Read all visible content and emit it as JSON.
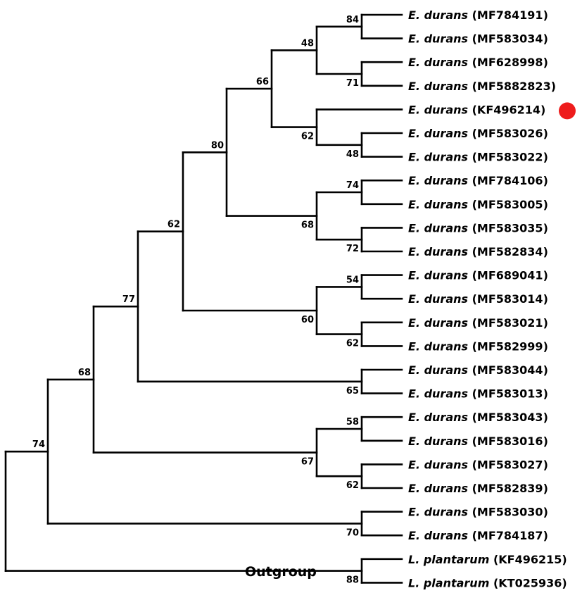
{
  "taxa": [
    {
      "species": "E. durans",
      "accession": "(MF784191)"
    },
    {
      "species": "E. durans",
      "accession": "(MF583034)"
    },
    {
      "species": "E. durans",
      "accession": "(MF628998)"
    },
    {
      "species": "E. durans",
      "accession": "(MF5882823)"
    },
    {
      "species": "E. durans",
      "accession": "(KF496214)",
      "highlight": true
    },
    {
      "species": "E. durans",
      "accession": "(MF583026)"
    },
    {
      "species": "E. durans",
      "accession": "(MF583022)"
    },
    {
      "species": "E. durans",
      "accession": "(MF784106)"
    },
    {
      "species": "E. durans",
      "accession": "(MF583005)"
    },
    {
      "species": "E. durans",
      "accession": "(MF583035)"
    },
    {
      "species": "E. durans",
      "accession": "(MF582834)"
    },
    {
      "species": "E. durans",
      "accession": "(MF689041)"
    },
    {
      "species": "E. durans",
      "accession": "(MF583014)"
    },
    {
      "species": "E. durans",
      "accession": "(MF583021)"
    },
    {
      "species": "E. durans",
      "accession": "(MF582999)"
    },
    {
      "species": "E. durans",
      "accession": "(MF583044)"
    },
    {
      "species": "E. durans",
      "accession": "(MF583013)"
    },
    {
      "species": "E. durans",
      "accession": "(MF583043)"
    },
    {
      "species": "E. durans",
      "accession": "(MF583016)"
    },
    {
      "species": "E. durans",
      "accession": "(MF583027)"
    },
    {
      "species": "E. durans",
      "accession": "(MF582839)"
    },
    {
      "species": "E. durans",
      "accession": "(MF583030)"
    },
    {
      "species": "E. durans",
      "accession": "(MF784187)"
    },
    {
      "species": "L. plantarum",
      "accession": "(KF496215)"
    },
    {
      "species": "L. plantarum",
      "accession": "(KT025936)"
    }
  ],
  "clades": [
    {
      "id": "n84",
      "children": [
        0,
        1
      ],
      "bootstrap": "84"
    },
    {
      "id": "n71",
      "children": [
        2,
        3
      ],
      "bootstrap": "71"
    },
    {
      "id": "n48a",
      "children": [
        "n84",
        "n71"
      ],
      "bootstrap": "48"
    },
    {
      "id": "n48b",
      "children": [
        5,
        6
      ],
      "bootstrap": "48"
    },
    {
      "id": "n62a",
      "children": [
        4,
        "n48b"
      ],
      "bootstrap": "62"
    },
    {
      "id": "n66",
      "children": [
        "n48a",
        "n62a"
      ],
      "bootstrap": "66"
    },
    {
      "id": "n74a",
      "children": [
        7,
        8
      ],
      "bootstrap": "74"
    },
    {
      "id": "n72",
      "children": [
        9,
        10
      ],
      "bootstrap": "72"
    },
    {
      "id": "n68a",
      "children": [
        "n74a",
        "n72"
      ],
      "bootstrap": "68"
    },
    {
      "id": "n80",
      "children": [
        "n66",
        "n68a"
      ],
      "bootstrap": "80"
    },
    {
      "id": "n54",
      "children": [
        11,
        12
      ],
      "bootstrap": "54"
    },
    {
      "id": "n62b",
      "children": [
        13,
        14
      ],
      "bootstrap": "62"
    },
    {
      "id": "n60",
      "children": [
        "n54",
        "n62b"
      ],
      "bootstrap": "60"
    },
    {
      "id": "n62c",
      "children": [
        "n80",
        "n60"
      ],
      "bootstrap": "62"
    },
    {
      "id": "n65",
      "children": [
        15,
        16
      ],
      "bootstrap": "65"
    },
    {
      "id": "n77",
      "children": [
        "n62c",
        "n65"
      ],
      "bootstrap": "77"
    },
    {
      "id": "n58",
      "children": [
        17,
        18
      ],
      "bootstrap": "58"
    },
    {
      "id": "n62d",
      "children": [
        19,
        20
      ],
      "bootstrap": "62"
    },
    {
      "id": "n67",
      "children": [
        "n58",
        "n62d"
      ],
      "bootstrap": "67"
    },
    {
      "id": "n68b",
      "children": [
        "n77",
        "n67"
      ],
      "bootstrap": "68"
    },
    {
      "id": "n70",
      "children": [
        21,
        22
      ],
      "bootstrap": "70"
    },
    {
      "id": "n74b",
      "children": [
        "n68b",
        "n70"
      ],
      "bootstrap": "74"
    },
    {
      "id": "n88",
      "children": [
        23,
        24
      ],
      "bootstrap": "88"
    },
    {
      "id": "root",
      "children": [
        "n74b",
        "n88"
      ],
      "bootstrap": ""
    }
  ],
  "outgroup_label": "Outgroup",
  "colors": {
    "branch": "#000000",
    "highlight_marker": "#ee1c1c"
  }
}
